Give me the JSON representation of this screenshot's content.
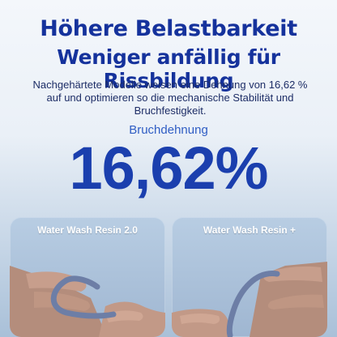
{
  "header": {
    "title_line1": "Höhere Belastbarkeit",
    "title_line2": "Weniger anfällig für Rissbildung"
  },
  "description": "Nachgehärtete Modelle weisen eine Dehnung von 16,62 % auf und optimieren so die mechanische Stabilität und Bruchfestigkeit.",
  "metric": {
    "label": "Bruchdehnung",
    "value": "16,62%"
  },
  "comparison": [
    {
      "label": "Water Wash Resin 2.0"
    },
    {
      "label": "Water Wash Resin +"
    }
  ]
}
